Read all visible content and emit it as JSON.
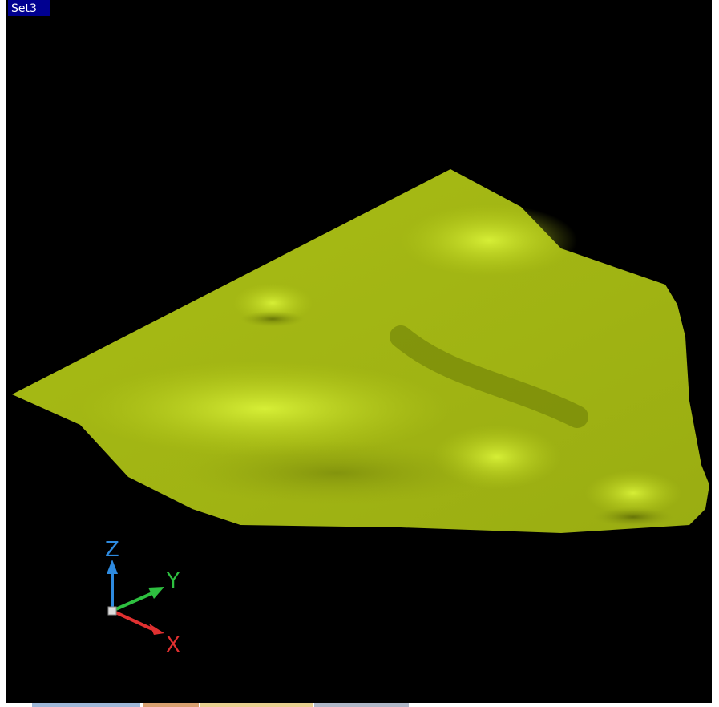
{
  "viewport": {
    "label": "Set3"
  },
  "axes": {
    "z": "Z",
    "y": "Y",
    "x": "X"
  }
}
